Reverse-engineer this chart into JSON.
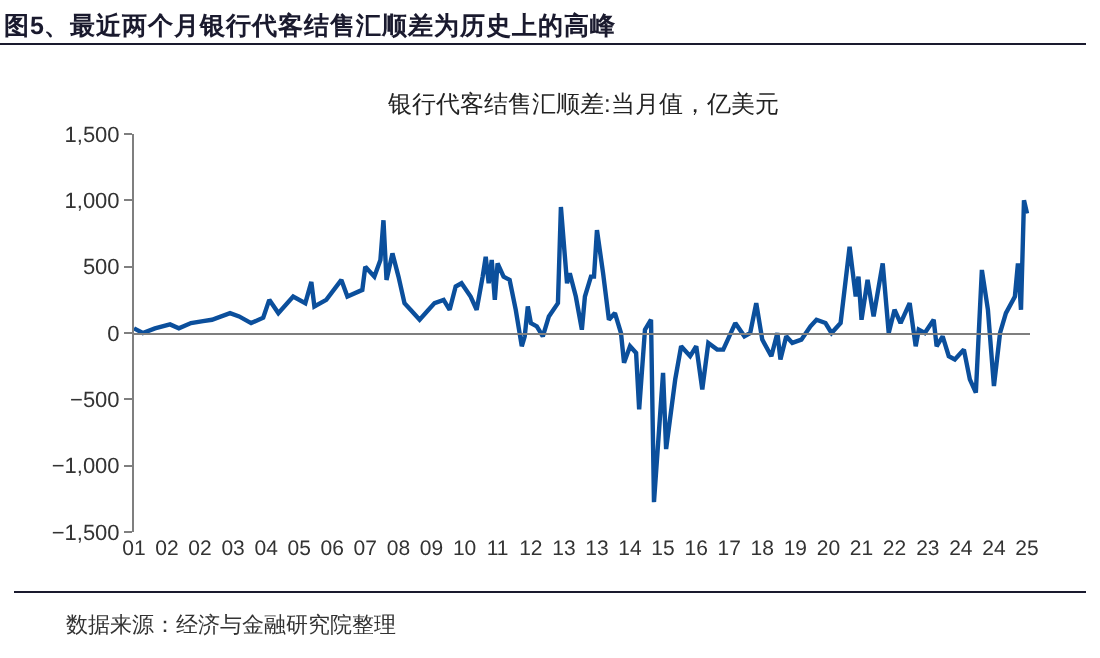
{
  "chart_data": {
    "type": "line",
    "title": "图5、最近两个月银行代客结售汇顺差为历史上的高峰",
    "subtitle": "银行代客结售汇顺差:当月值，亿美元",
    "annotations": [
      "数据来源：经济与金融研究院整理"
    ],
    "x": [
      "2001-02",
      "2001-05",
      "2001-09",
      "2002-02",
      "2002-05",
      "2002-09",
      "2003-01",
      "2003-04",
      "2003-10",
      "2004-01",
      "2004-05",
      "2004-09",
      "2004-11",
      "2005-02",
      "2005-07",
      "2005-11",
      "2006-01",
      "2006-02",
      "2006-06",
      "2006-11",
      "2007-01",
      "2007-06",
      "2007-07",
      "2007-10",
      "2007-12",
      "2008-01",
      "2008-02",
      "2008-04",
      "2008-06",
      "2008-08",
      "2008-10",
      "2009-01",
      "2009-04",
      "2009-06",
      "2009-09",
      "2009-11",
      "2010-01",
      "2010-03",
      "2010-06",
      "2010-08",
      "2010-10",
      "2010-11",
      "2010-12",
      "2011-01",
      "2011-02",
      "2011-03",
      "2011-05",
      "2011-07",
      "2011-09",
      "2011-11",
      "2011-12",
      "2012-01",
      "2012-02",
      "2012-04",
      "2012-06",
      "2012-08",
      "2012-11",
      "2012-12",
      "2013-02",
      "2013-03",
      "2013-05",
      "2013-07",
      "2013-08",
      "2013-10",
      "2013-11",
      "2013-12",
      "2014-02",
      "2014-04",
      "2014-06",
      "2014-08",
      "2014-09",
      "2014-11",
      "2015-01",
      "2015-02",
      "2015-04",
      "2015-06",
      "2015-07",
      "2015-10",
      "2015-11",
      "2016-02",
      "2016-04",
      "2016-07",
      "2016-09",
      "2016-11",
      "2017-01",
      "2017-04",
      "2017-06",
      "2017-08",
      "2017-10",
      "2018-01",
      "2018-03",
      "2018-05",
      "2018-07",
      "2018-10",
      "2018-12",
      "2019-01",
      "2019-03",
      "2019-05",
      "2019-08",
      "2019-11",
      "2020-01",
      "2020-04",
      "2020-06",
      "2020-09",
      "2020-12",
      "2021-02",
      "2021-03",
      "2021-04",
      "2021-06",
      "2021-08",
      "2021-11",
      "2022-01",
      "2022-03",
      "2022-05",
      "2022-08",
      "2022-10",
      "2022-11",
      "2023-01",
      "2023-04",
      "2023-05",
      "2023-07",
      "2023-09",
      "2023-11",
      "2024-02",
      "2024-04",
      "2024-06",
      "2024-08",
      "2024-10",
      "2024-12",
      "2025-02",
      "2025-04",
      "2025-07",
      "2025-08",
      "2025-09",
      "2025-10",
      "2025-11"
    ],
    "series": [
      {
        "color": "#0b4f9c",
        "values": [
          35,
          0,
          35,
          65,
          35,
          75,
          90,
          100,
          150,
          125,
          75,
          115,
          250,
          150,
          275,
          225,
          385,
          200,
          250,
          400,
          275,
          325,
          500,
          425,
          550,
          850,
          400,
          600,
          425,
          225,
          175,
          100,
          175,
          225,
          250,
          175,
          350,
          375,
          275,
          175,
          425,
          575,
          375,
          550,
          250,
          525,
          425,
          400,
          175,
          -100,
          -25,
          200,
          75,
          50,
          -25,
          125,
          225,
          950,
          375,
          450,
          275,
          25,
          275,
          425,
          425,
          775,
          450,
          100,
          150,
          0,
          -225,
          -100,
          -150,
          -575,
          25,
          100,
          -1275,
          -300,
          -875,
          -350,
          -100,
          -175,
          -100,
          -425,
          -75,
          -125,
          -125,
          -25,
          75,
          -25,
          0,
          225,
          -50,
          -175,
          0,
          -200,
          -25,
          -75,
          -50,
          50,
          100,
          75,
          0,
          75,
          650,
          275,
          425,
          100,
          400,
          125,
          525,
          0,
          175,
          75,
          225,
          -100,
          25,
          0,
          100,
          -100,
          -25,
          -175,
          -200,
          -125,
          -350,
          -450,
          475,
          175,
          -400,
          0,
          150,
          275,
          525,
          175,
          1000,
          900
        ]
      }
    ],
    "xlim": [
      "2001-02",
      "2025-12"
    ],
    "xticks": [
      {
        "value": "2001-02",
        "label": "01"
      },
      {
        "value": "2002-01",
        "label": "02"
      },
      {
        "value": "2002-12",
        "label": "02"
      },
      {
        "value": "2003-11",
        "label": "03"
      },
      {
        "value": "2004-10",
        "label": "04"
      },
      {
        "value": "2005-09",
        "label": "05"
      },
      {
        "value": "2006-08",
        "label": "06"
      },
      {
        "value": "2007-07",
        "label": "07"
      },
      {
        "value": "2008-06",
        "label": "08"
      },
      {
        "value": "2009-05",
        "label": "09"
      },
      {
        "value": "2010-04",
        "label": "10"
      },
      {
        "value": "2011-03",
        "label": "11"
      },
      {
        "value": "2012-02",
        "label": "12"
      },
      {
        "value": "2013-01",
        "label": "13"
      },
      {
        "value": "2013-12",
        "label": "13"
      },
      {
        "value": "2014-11",
        "label": "14"
      },
      {
        "value": "2015-10",
        "label": "15"
      },
      {
        "value": "2016-09",
        "label": "16"
      },
      {
        "value": "2017-08",
        "label": "17"
      },
      {
        "value": "2018-07",
        "label": "18"
      },
      {
        "value": "2019-06",
        "label": "19"
      },
      {
        "value": "2020-05",
        "label": "20"
      },
      {
        "value": "2021-04",
        "label": "21"
      },
      {
        "value": "2022-03",
        "label": "22"
      },
      {
        "value": "2023-02",
        "label": "23"
      },
      {
        "value": "2024-01",
        "label": "24"
      },
      {
        "value": "2024-12",
        "label": "24"
      },
      {
        "value": "2025-11",
        "label": "25"
      }
    ],
    "ylim": [
      -1500,
      1500
    ],
    "yticks": [
      {
        "value": -1500,
        "label": "−1,500"
      },
      {
        "value": -1000,
        "label": "−1,000"
      },
      {
        "value": -500,
        "label": "−500"
      },
      0,
      500,
      {
        "value": 1000,
        "label": "1,000"
      },
      {
        "value": 1500,
        "label": "1,500"
      }
    ],
    "marker": "none",
    "line_style": "solid"
  }
}
